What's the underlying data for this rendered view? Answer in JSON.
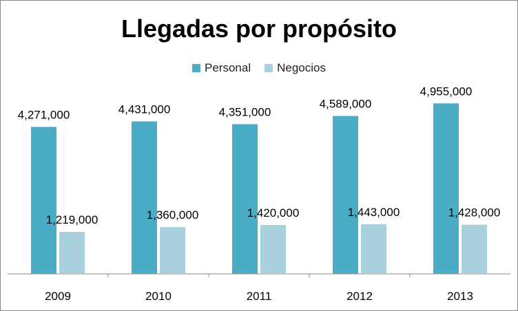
{
  "chart_data": {
    "type": "bar",
    "title": "Llegadas por propósito",
    "xlabel": "",
    "ylabel": "",
    "categories": [
      "2009",
      "2010",
      "2011",
      "2012",
      "2013"
    ],
    "series": [
      {
        "name": "Personal",
        "color": "#4bacc6",
        "values": [
          4271000,
          4431000,
          4351000,
          4589000,
          4955000
        ],
        "labels": [
          "4,271,000",
          "4,431,000",
          "4,351,000",
          "4,589,000",
          "4,955,000"
        ]
      },
      {
        "name": "Negocios",
        "color": "#a8d0dd",
        "values": [
          1219000,
          1360000,
          1420000,
          1443000,
          1428000
        ],
        "labels": [
          "1,219,000",
          "1,360,000",
          "1,420,000",
          "1,443,000",
          "1,428,000"
        ]
      }
    ],
    "ylim": [
      0,
      6000000
    ],
    "grid": false,
    "legend_position": "top"
  }
}
